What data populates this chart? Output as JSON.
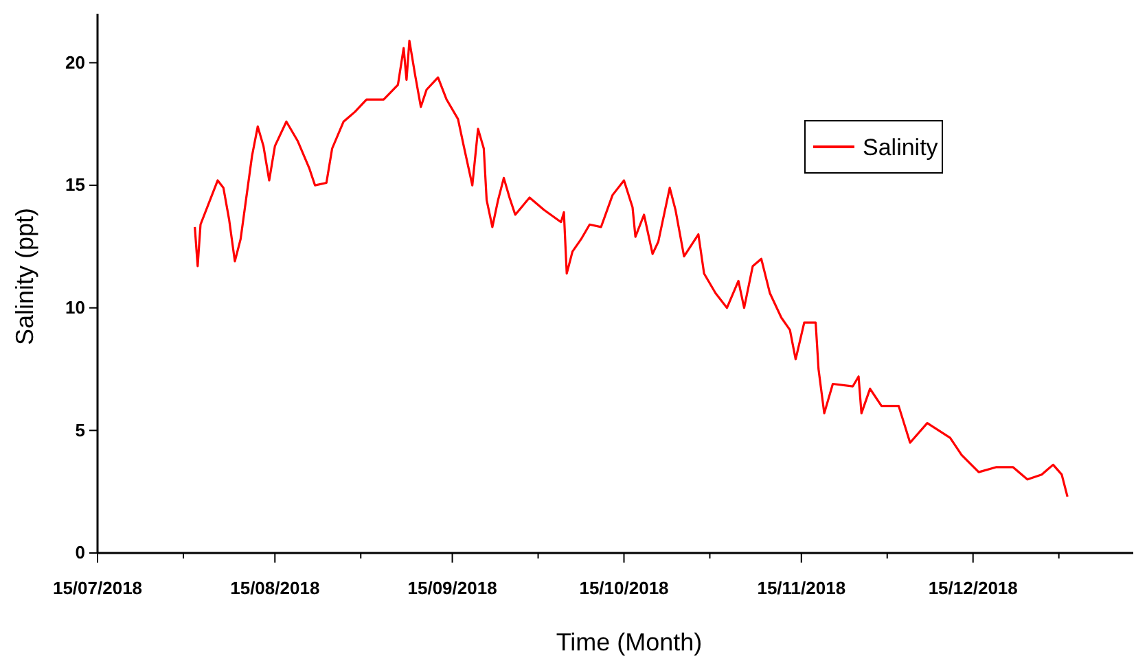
{
  "chart_data": {
    "type": "line",
    "xlabel": "Time (Month)",
    "ylabel": "Salinity (ppt)",
    "x": [
      "2018-08-01",
      "2018-08-01T12:00",
      "2018-08-02",
      "2018-08-05",
      "2018-08-06",
      "2018-08-07",
      "2018-08-08",
      "2018-08-09",
      "2018-08-10",
      "2018-08-11",
      "2018-08-12",
      "2018-08-13",
      "2018-08-14",
      "2018-08-15",
      "2018-08-17",
      "2018-08-19",
      "2018-08-21",
      "2018-08-22",
      "2018-08-24",
      "2018-08-25",
      "2018-08-27",
      "2018-08-29",
      "2018-08-31",
      "2018-09-03",
      "2018-09-05T12:00",
      "2018-09-06T12:00",
      "2018-09-07",
      "2018-09-07T12:00",
      "2018-09-08T12:00",
      "2018-09-09T12:00",
      "2018-09-10T12:00",
      "2018-09-12T12:00",
      "2018-09-14",
      "2018-09-16",
      "2018-09-17",
      "2018-09-18T12:00",
      "2018-09-19T12:00",
      "2018-09-20T12:00",
      "2018-09-21",
      "2018-09-22",
      "2018-09-23",
      "2018-09-24",
      "2018-09-25",
      "2018-09-26",
      "2018-09-28T12:00",
      "2018-10-01",
      "2018-10-04",
      "2018-10-04T12:00",
      "2018-10-05",
      "2018-10-06",
      "2018-10-07T12:00",
      "2018-10-09",
      "2018-10-11",
      "2018-10-13",
      "2018-10-15",
      "2018-10-16T12:00",
      "2018-10-17",
      "2018-10-18T12:00",
      "2018-10-20",
      "2018-10-21",
      "2018-10-23",
      "2018-10-24",
      "2018-10-25T12:00",
      "2018-10-28",
      "2018-10-29",
      "2018-10-31",
      "2018-11-02",
      "2018-11-04",
      "2018-11-05",
      "2018-11-06T12:00",
      "2018-11-08",
      "2018-11-09T12:00",
      "2018-11-11T12:00",
      "2018-11-13",
      "2018-11-14",
      "2018-11-15T12:00",
      "2018-11-17T12:00",
      "2018-11-18",
      "2018-11-19",
      "2018-11-20T12:00",
      "2018-11-24",
      "2018-11-25",
      "2018-11-25T12:00",
      "2018-11-27",
      "2018-11-29",
      "2018-12-02",
      "2018-12-04",
      "2018-12-07",
      "2018-12-11",
      "2018-12-13",
      "2018-12-16",
      "2018-12-19",
      "2018-12-22",
      "2018-12-24T12:00",
      "2018-12-27",
      "2018-12-29",
      "2018-12-30T12:00",
      "2018-12-31T12:00"
    ],
    "series": [
      {
        "name": "Salinity",
        "color": "#ff0000",
        "values": [
          13.3,
          11.7,
          13.4,
          15.2,
          14.9,
          13.6,
          11.9,
          12.8,
          14.5,
          16.2,
          17.4,
          16.6,
          15.2,
          16.6,
          17.6,
          16.8,
          15.7,
          15.0,
          15.1,
          16.5,
          17.6,
          18.0,
          18.5,
          18.5,
          19.1,
          20.6,
          19.3,
          20.9,
          19.5,
          18.2,
          18.9,
          19.4,
          18.5,
          17.7,
          16.6,
          15.0,
          17.3,
          16.5,
          14.4,
          13.3,
          14.4,
          15.3,
          14.5,
          13.8,
          14.5,
          14.0,
          13.5,
          13.9,
          11.4,
          12.3,
          12.8,
          13.4,
          13.3,
          14.6,
          15.2,
          14.1,
          12.9,
          13.8,
          12.2,
          12.7,
          14.9,
          14.0,
          12.1,
          13.0,
          11.4,
          10.6,
          10.0,
          11.1,
          10.0,
          11.7,
          12.0,
          10.6,
          9.6,
          9.1,
          7.9,
          9.4,
          9.4,
          7.5,
          5.7,
          6.9,
          6.8,
          7.2,
          5.7,
          6.7,
          6.0,
          6.0,
          4.5,
          5.3,
          4.7,
          4.0,
          3.3,
          3.5,
          3.5,
          3.0,
          3.2,
          3.6,
          3.2,
          2.3
        ]
      }
    ],
    "xlim": [
      "2018-07-15",
      "2019-01-12"
    ],
    "xticks": [
      {
        "value": "2018-07-15",
        "label": "15/07/2018"
      },
      {
        "value": "2018-07-30",
        "label": null
      },
      {
        "value": "2018-08-15",
        "label": "15/08/2018"
      },
      {
        "value": "2018-08-30",
        "label": null
      },
      {
        "value": "2018-09-15",
        "label": "15/09/2018"
      },
      {
        "value": "2018-09-30",
        "label": null
      },
      {
        "value": "2018-10-15",
        "label": "15/10/2018"
      },
      {
        "value": "2018-10-30",
        "label": null
      },
      {
        "value": "2018-11-15",
        "label": "15/11/2018"
      },
      {
        "value": "2018-11-30",
        "label": null
      },
      {
        "value": "2018-12-15",
        "label": "15/12/2018"
      },
      {
        "value": "2018-12-30",
        "label": null
      }
    ],
    "ylim": [
      0,
      22
    ],
    "yticks": [
      0,
      5,
      10,
      15,
      20
    ],
    "grid": false,
    "legend": "top right",
    "line_style": "solid",
    "marker": "none"
  }
}
